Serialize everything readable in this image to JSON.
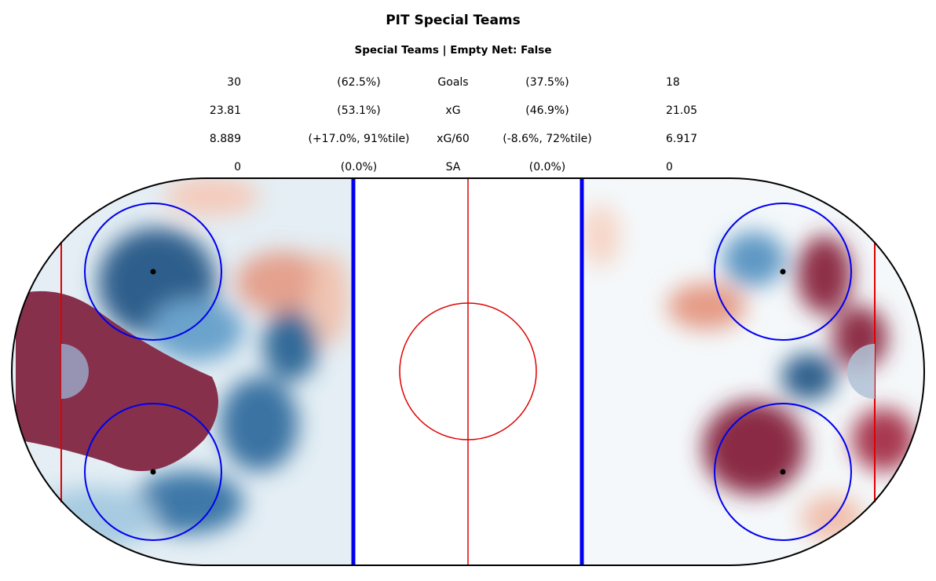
{
  "title": "PIT Special Teams",
  "subtitle": "Special Teams | Empty Net: False",
  "stats": [
    {
      "left": "30",
      "left_pct": "(62.5%)",
      "label": "Goals",
      "right_pct": "(37.5%)",
      "right": "18"
    },
    {
      "left": "23.81",
      "left_pct": "(53.1%)",
      "label": "xG",
      "right_pct": "(46.9%)",
      "right": "21.05"
    },
    {
      "left": "8.889",
      "left_pct": "(+17.0%, 91%tile)",
      "label": "xG/60",
      "right_pct": "(-8.6%, 72%tile)",
      "right": "6.917"
    },
    {
      "left": "0",
      "left_pct": "(0.0%)",
      "label": "SA",
      "right_pct": "(0.0%)",
      "right": "0"
    }
  ]
}
